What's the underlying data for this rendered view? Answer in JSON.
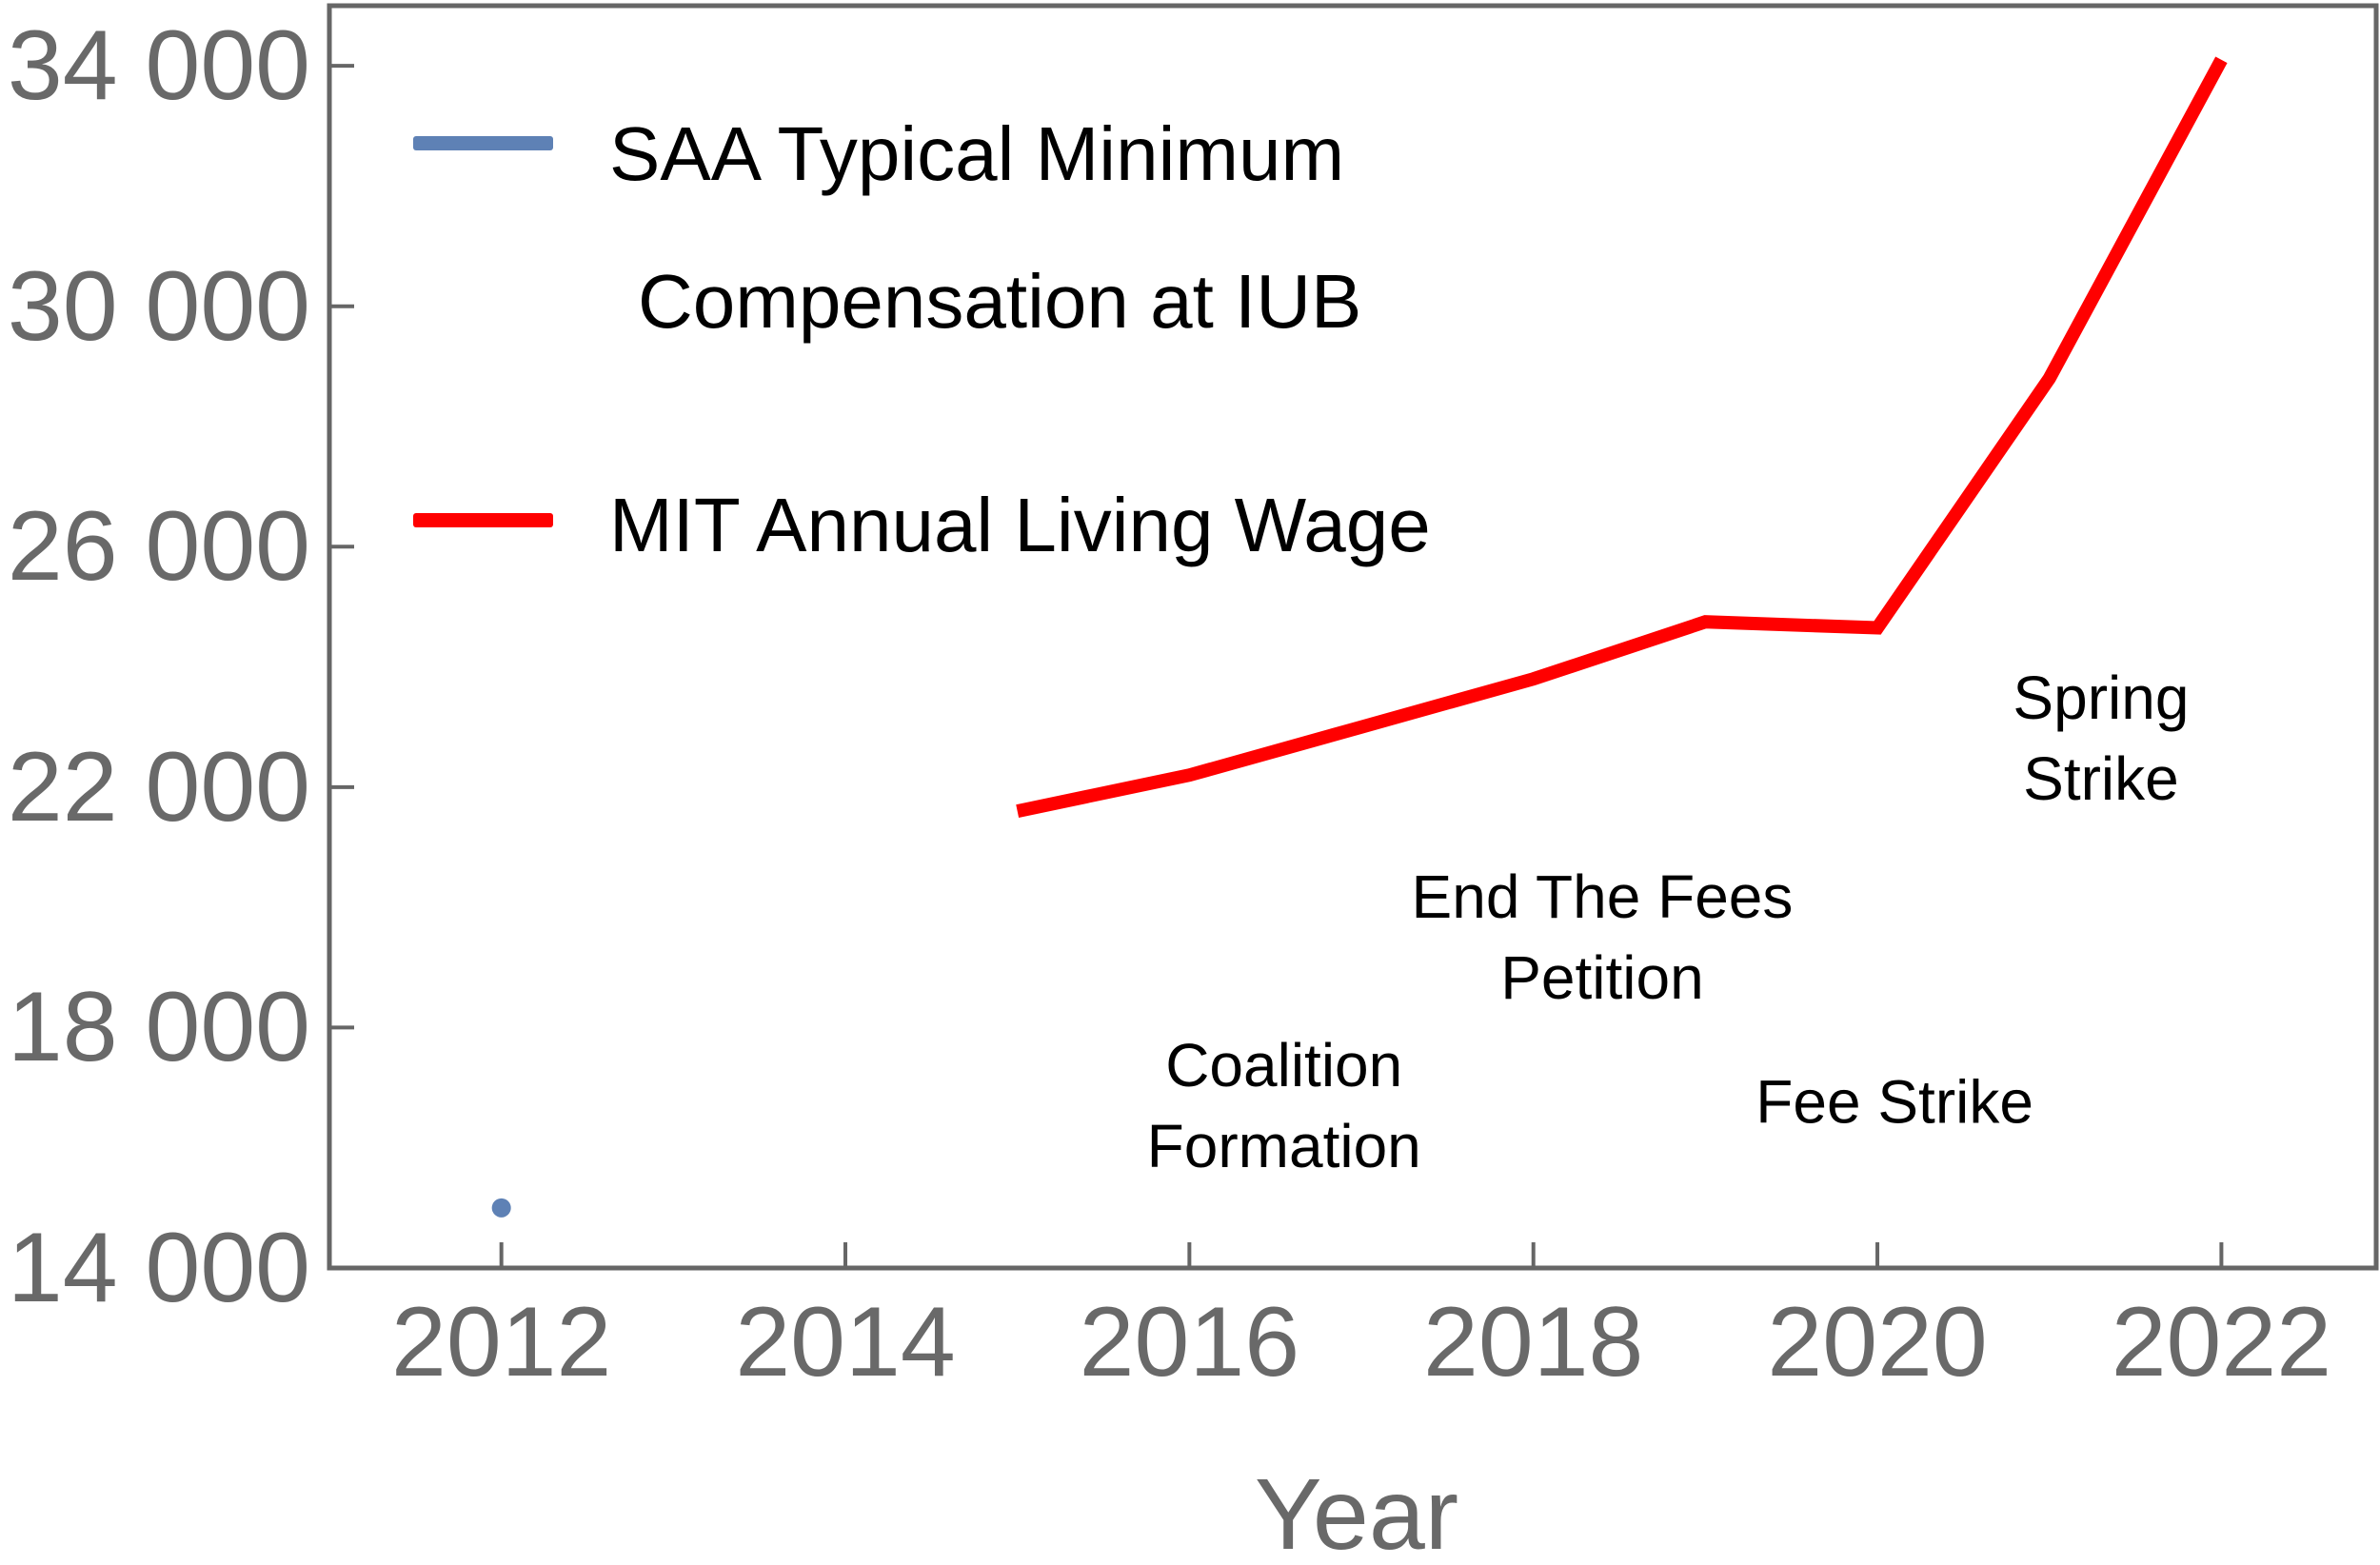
{
  "chart_data": {
    "type": "line",
    "title": "",
    "xlabel": "Year",
    "ylabel": "",
    "xlim": [
      2011.0,
      2022.9
    ],
    "ylim": [
      14000,
      35000
    ],
    "grid": false,
    "legend_position": "top-left-inside",
    "x_ticks": [
      2012,
      2014,
      2016,
      2018,
      2020,
      2022
    ],
    "y_ticks": [
      14000,
      18000,
      22000,
      26000,
      30000,
      34000
    ],
    "y_tick_labels": [
      "14 000",
      "18 000",
      "22 000",
      "26 000",
      "30 000",
      "34 000"
    ],
    "colors": {
      "axis": "#666666",
      "tick_label": "#696969",
      "annotation": "#000000",
      "saa_blue": "#5E81B5",
      "mit_red": "#FF0000"
    },
    "series": [
      {
        "name": "SAA Typical Minimum Compensation at IUB",
        "type": "scatter",
        "color": "#5E81B5",
        "points": [
          {
            "x": 2012,
            "y": 15000
          }
        ]
      },
      {
        "name": "MIT Annual Living Wage",
        "type": "line",
        "color": "#FF0000",
        "x": [
          2015,
          2016,
          2017,
          2018,
          2019,
          2020,
          2021,
          2022
        ],
        "values": [
          21600,
          22200,
          23000,
          23800,
          24750,
          24650,
          28800,
          34100
        ]
      }
    ],
    "legend": [
      {
        "label_lines": [
          "SAA Typical Minimum",
          "Compensation at IUB"
        ],
        "color": "#5E81B5"
      },
      {
        "label_lines": [
          "MIT Annual Living Wage"
        ],
        "color": "#FF0000"
      }
    ],
    "annotations": [
      {
        "lines": [
          "Coalition",
          "Formation"
        ],
        "x": 2016.55,
        "y": 16700
      },
      {
        "lines": [
          "End The Fees",
          "Petition"
        ],
        "x": 2018.4,
        "y": 19500
      },
      {
        "lines": [
          "Fee Strike"
        ],
        "x": 2020.1,
        "y": 16750
      },
      {
        "lines": [
          "Spring",
          "Strike"
        ],
        "x": 2021.3,
        "y": 22800
      }
    ]
  }
}
